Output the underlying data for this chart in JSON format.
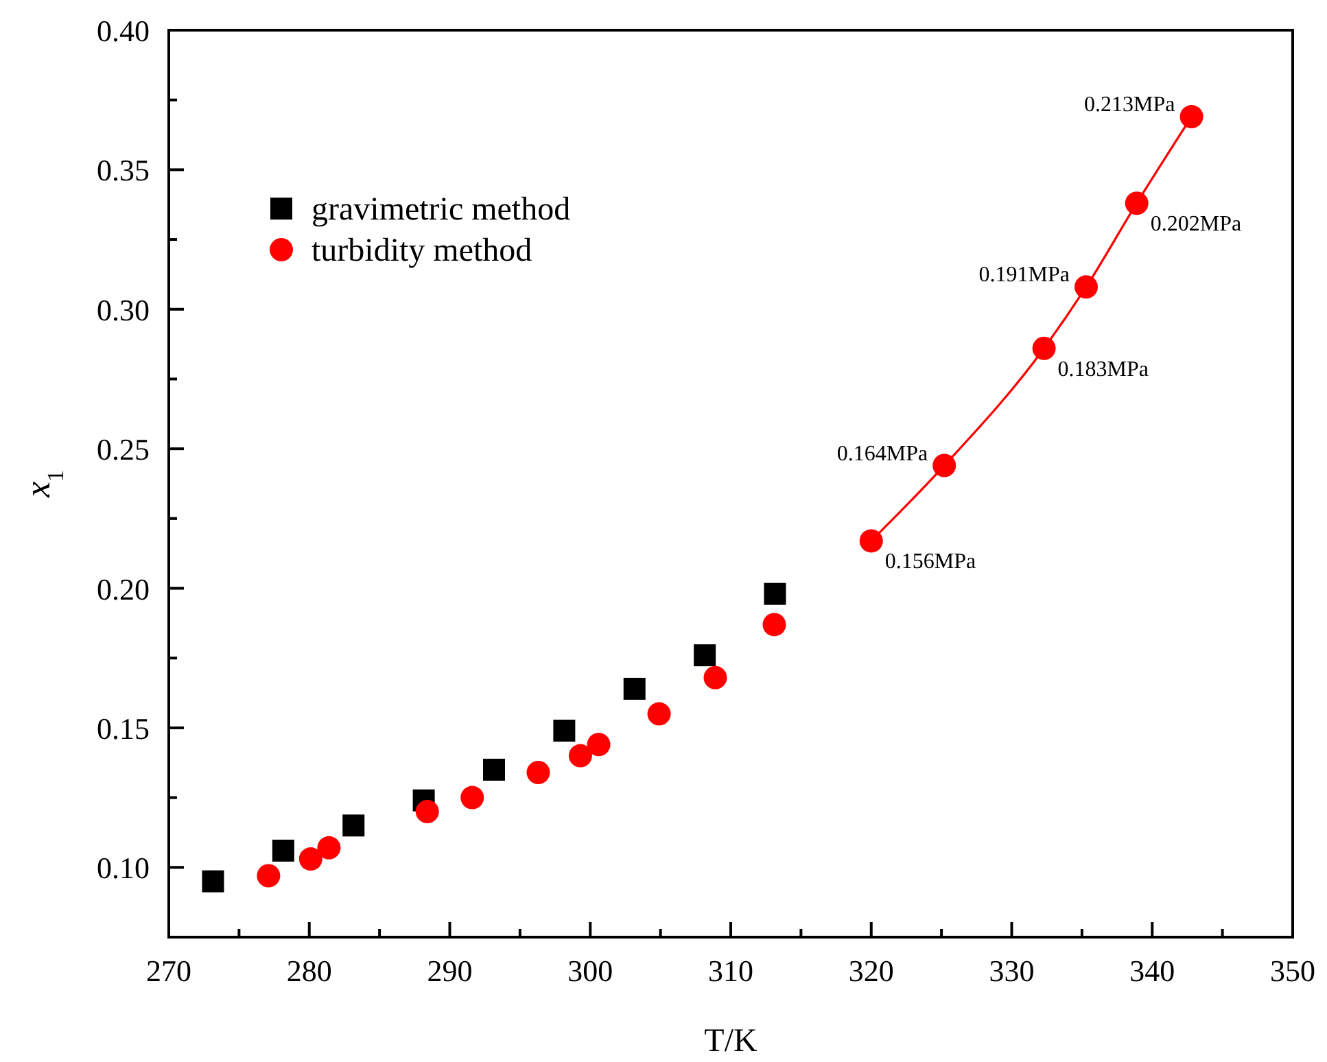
{
  "chart_data": {
    "type": "scatter",
    "xlabel": "T/K",
    "ylabel": "x$_{1}$",
    "xlim": [
      270,
      350
    ],
    "ylim": [
      0.075,
      0.4
    ],
    "xticks": [
      270,
      {
        "value": 275,
        "label": null
      },
      280,
      {
        "value": 285,
        "label": null
      },
      290,
      {
        "value": 295,
        "label": null
      },
      300,
      {
        "value": 305,
        "label": null
      },
      310,
      {
        "value": 315,
        "label": null
      },
      320,
      {
        "value": 325,
        "label": null
      },
      330,
      {
        "value": 335,
        "label": null
      },
      340,
      {
        "value": 345,
        "label": null
      },
      350
    ],
    "yticks": [
      {
        "value": 0.1,
        "label": "0.10"
      },
      {
        "value": 0.125,
        "label": null
      },
      {
        "value": 0.15,
        "label": "0.15"
      },
      {
        "value": 0.175,
        "label": null
      },
      {
        "value": 0.2,
        "label": "0.20"
      },
      {
        "value": 0.225,
        "label": null
      },
      {
        "value": 0.25,
        "label": "0.25"
      },
      {
        "value": 0.275,
        "label": null
      },
      {
        "value": 0.3,
        "label": "0.30"
      },
      {
        "value": 0.325,
        "label": null
      },
      {
        "value": 0.35,
        "label": "0.35"
      },
      {
        "value": 0.375,
        "label": null
      },
      {
        "value": 0.4,
        "label": "0.40"
      }
    ],
    "legend": "top left",
    "grid": false,
    "series": [
      {
        "name": "gravimetric method",
        "marker": "square",
        "color": "#000000",
        "x": [
          273.15,
          278.15,
          283.15,
          288.15,
          293.15,
          298.15,
          303.15,
          308.15,
          313.15
        ],
        "values": [
          0.095,
          0.106,
          0.115,
          0.124,
          0.135,
          0.149,
          0.164,
          0.176,
          0.198
        ]
      },
      {
        "name": "turbidity method",
        "marker": "circle",
        "color": "#ff0000",
        "x": [
          277.1,
          280.1,
          281.4,
          288.4,
          291.6,
          296.3,
          299.3,
          300.6,
          304.9,
          308.9,
          313.1,
          320.0,
          325.2,
          332.3,
          335.3,
          338.9,
          342.8
        ],
        "values": [
          0.097,
          0.103,
          0.107,
          0.12,
          0.125,
          0.134,
          0.14,
          0.144,
          0.155,
          0.168,
          0.187,
          0.217,
          0.244,
          0.286,
          0.308,
          0.338,
          0.369
        ]
      },
      {
        "type": "line",
        "marker": "none",
        "line_style": "solid",
        "color": "#ff0000",
        "x": [
          320.0,
          325.2,
          332.3,
          335.3,
          338.9,
          342.8
        ],
        "values": [
          0.217,
          0.244,
          0.286,
          0.308,
          0.338,
          0.369
        ]
      }
    ],
    "annotations": [
      {
        "text": "0.156MPa",
        "x": 320.0,
        "y": 0.217
      },
      {
        "text": "0.164MPa",
        "x": 325.2,
        "y": 0.244
      },
      {
        "text": "0.183MPa",
        "x": 332.3,
        "y": 0.286
      },
      {
        "text": "0.191MPa",
        "x": 335.3,
        "y": 0.308
      },
      {
        "text": "0.202MPa",
        "x": 338.9,
        "y": 0.338
      },
      {
        "text": "0.213MPa",
        "x": 342.8,
        "y": 0.369
      }
    ]
  }
}
